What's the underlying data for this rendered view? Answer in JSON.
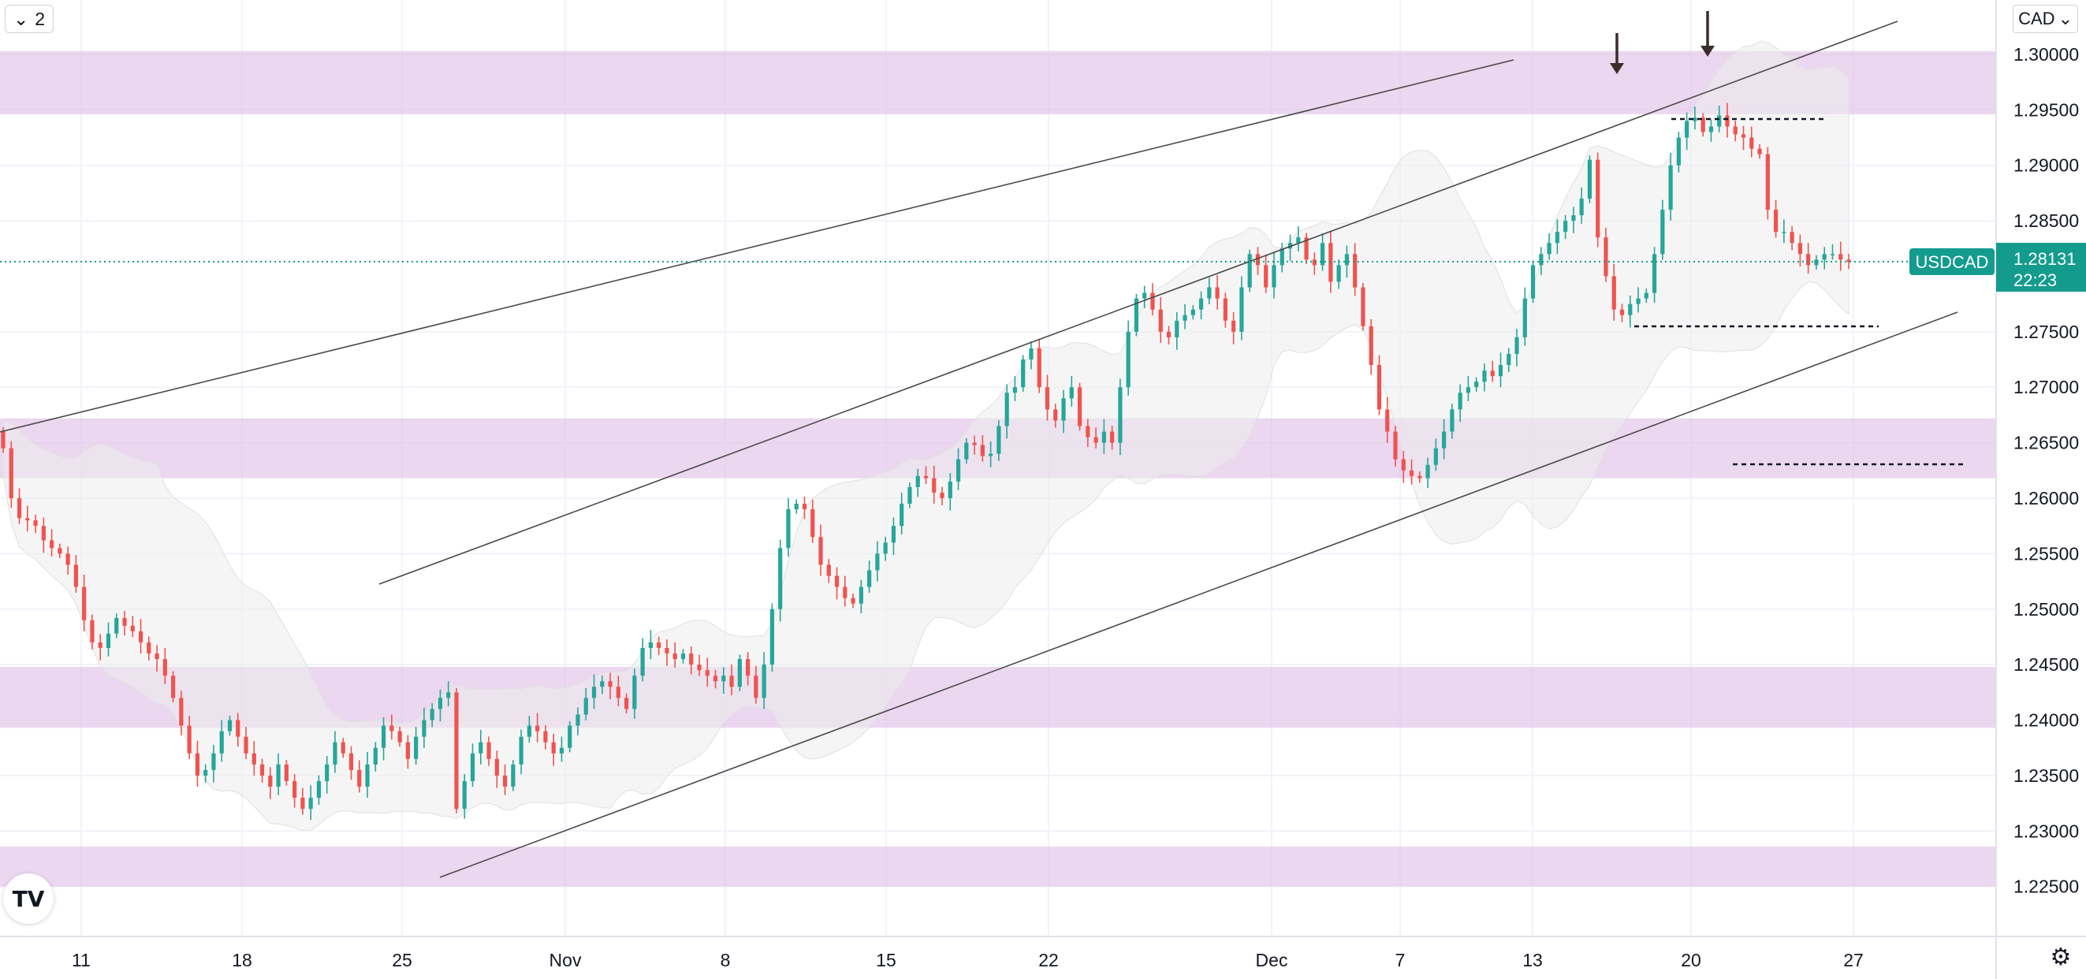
{
  "toolbar": {
    "collapse_icon": "chevron-down-icon",
    "indicator_count": "2",
    "currency_label": "CAD"
  },
  "settings_icon": "gear-icon",
  "logo_text": "TV",
  "colors": {
    "up": "#26a69a",
    "down": "#ef5350",
    "zone": "#e1bee7",
    "band_fill": "#ececec",
    "badge": "#139c8e",
    "trendline": "#4a4a4a"
  },
  "chart_data": {
    "type": "candlestick",
    "symbol": "USDCAD",
    "last_price": "1.28131",
    "countdown": "22:23",
    "y_axis": {
      "ticks": [
        "1.30000",
        "1.29500",
        "1.29000",
        "1.28500",
        "1.27500",
        "1.27000",
        "1.26500",
        "1.26000",
        "1.25500",
        "1.25000",
        "1.24500",
        "1.24000",
        "1.23500",
        "1.23000",
        "1.22500"
      ],
      "range": [
        1.2205,
        1.3049
      ]
    },
    "x_axis": {
      "ticks": [
        "11",
        "18",
        "25",
        "Nov",
        "8",
        "15",
        "22",
        "Dec",
        "7",
        "13",
        "20",
        "27"
      ]
    },
    "zones": [
      {
        "from": 1.2946,
        "to": 1.3003
      },
      {
        "from": 1.2618,
        "to": 1.2672
      },
      {
        "from": 1.2393,
        "to": 1.2448
      },
      {
        "from": 1.225,
        "to": 1.2286
      }
    ],
    "closes": [
      1.2645,
      1.26,
      1.2582,
      1.258,
      1.2575,
      1.2562,
      1.2555,
      1.255,
      1.254,
      1.252,
      1.249,
      1.247,
      1.2465,
      1.2478,
      1.2492,
      1.2485,
      1.248,
      1.247,
      1.246,
      1.2455,
      1.244,
      1.242,
      1.2395,
      1.237,
      1.235,
      1.2355,
      1.237,
      1.239,
      1.24,
      1.2385,
      1.237,
      1.236,
      1.235,
      1.234,
      1.236,
      1.2345,
      1.233,
      1.232,
      1.233,
      1.2345,
      1.236,
      1.238,
      1.237,
      1.2355,
      1.234,
      1.236,
      1.2375,
      1.2395,
      1.239,
      1.238,
      1.2365,
      1.2385,
      1.24,
      1.241,
      1.242,
      1.2425,
      1.232,
      1.2345,
      1.237,
      1.238,
      1.2365,
      1.235,
      1.234,
      1.236,
      1.2385,
      1.2395,
      1.239,
      1.238,
      1.237,
      1.2375,
      1.2395,
      1.2405,
      1.242,
      1.243,
      1.2435,
      1.243,
      1.242,
      1.241,
      1.244,
      1.2465,
      1.247,
      1.2465,
      1.246,
      1.2455,
      1.246,
      1.245,
      1.2445,
      1.244,
      1.2435,
      1.244,
      1.243,
      1.2455,
      1.244,
      1.242,
      1.245,
      1.25,
      1.2555,
      1.259,
      1.2595,
      1.259,
      1.2565,
      1.254,
      1.253,
      1.252,
      1.251,
      1.2505,
      1.252,
      1.2535,
      1.255,
      1.256,
      1.2575,
      1.2595,
      1.261,
      1.262,
      1.2618,
      1.2605,
      1.26,
      1.2615,
      1.2635,
      1.265,
      1.2648,
      1.2638,
      1.264,
      1.2665,
      1.2695,
      1.27,
      1.2725,
      1.2735,
      1.27,
      1.268,
      1.267,
      1.269,
      1.27,
      1.2665,
      1.2655,
      1.265,
      1.266,
      1.265,
      1.27,
      1.275,
      1.278,
      1.2785,
      1.277,
      1.275,
      1.2745,
      1.276,
      1.2765,
      1.277,
      1.278,
      1.279,
      1.278,
      1.276,
      1.275,
      1.279,
      1.282,
      1.281,
      1.279,
      1.281,
      1.2825,
      1.283,
      1.2835,
      1.2815,
      1.281,
      1.283,
      1.2795,
      1.281,
      1.282,
      1.279,
      1.2755,
      1.272,
      1.268,
      1.266,
      1.2635,
      1.2625,
      1.262,
      1.2618,
      1.263,
      1.2645,
      1.266,
      1.268,
      1.2695,
      1.27,
      1.2705,
      1.2715,
      1.271,
      1.272,
      1.273,
      1.2745,
      1.278,
      1.281,
      1.282,
      1.283,
      1.284,
      1.285,
      1.2855,
      1.287,
      1.2905,
      1.2835,
      1.28,
      1.277,
      1.2765,
      1.2775,
      1.278,
      1.2785,
      1.282,
      1.286,
      1.29,
      1.2925,
      1.294,
      1.2943,
      1.293,
      1.2935,
      1.2945,
      1.2935,
      1.2928,
      1.2925,
      1.2915,
      1.291,
      1.286,
      1.284,
      1.284,
      1.283,
      1.282,
      1.281,
      1.2815,
      1.282,
      1.282,
      1.2815,
      1.2813
    ]
  }
}
